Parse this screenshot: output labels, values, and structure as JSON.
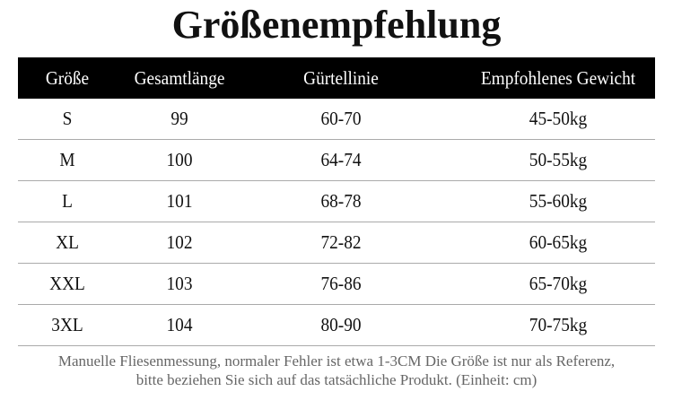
{
  "title": "Größenempfehlung",
  "table": {
    "headers": [
      "Größe",
      "Gesamtlänge",
      "Gürtellinie",
      "Empfohlenes Gewicht"
    ],
    "rows": [
      [
        "S",
        "99",
        "60-70",
        "45-50kg"
      ],
      [
        "M",
        "100",
        "64-74",
        "50-55kg"
      ],
      [
        "L",
        "101",
        "68-78",
        "55-60kg"
      ],
      [
        "XL",
        "102",
        "72-82",
        "60-65kg"
      ],
      [
        "XXL",
        "103",
        "76-86",
        "65-70kg"
      ],
      [
        "3XL",
        "104",
        "80-90",
        "70-75kg"
      ]
    ]
  },
  "note": {
    "line1": "Manuelle Fliesenmessung, normaler Fehler ist etwa 1-3CM Die Größe ist nur als Referenz,",
    "line2": "bitte beziehen Sie sich auf das tatsächliche Produkt. (Einheit: cm)"
  }
}
